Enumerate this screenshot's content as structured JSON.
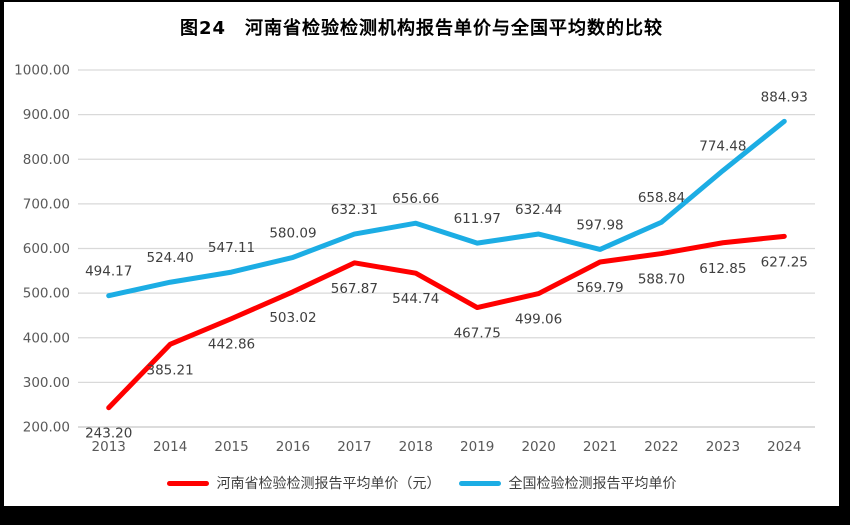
{
  "title": "图24　河南省检验检测机构报告单价与全国平均数的比较",
  "chart_data": {
    "type": "line",
    "categories": [
      "2013",
      "2014",
      "2015",
      "2016",
      "2017",
      "2018",
      "2019",
      "2020",
      "2021",
      "2022",
      "2023",
      "2024"
    ],
    "series": [
      {
        "name": "河南省检验检测报告平均单价（元）",
        "color": "#FF0000",
        "label_position": "below",
        "values": [
          243.2,
          385.21,
          442.86,
          503.02,
          567.87,
          544.74,
          467.75,
          499.06,
          569.79,
          588.7,
          612.85,
          627.25
        ]
      },
      {
        "name": "全国检验检测报告平均单价",
        "color": "#1CADE4",
        "label_position": "above",
        "values": [
          494.17,
          524.4,
          547.11,
          580.09,
          632.31,
          656.66,
          611.97,
          632.44,
          597.98,
          658.84,
          774.48,
          884.93
        ]
      }
    ],
    "ylim": [
      200,
      1000
    ],
    "ytick_step": 100,
    "ytick_labels": [
      "1000.00",
      "900.00",
      "800.00",
      "700.00",
      "600.00",
      "500.00",
      "400.00",
      "300.00",
      "200.00"
    ],
    "grid": true,
    "legend_position": "bottom",
    "colors": {
      "gridline": "#D9D9D9",
      "bottom_axis": "#C6C6C6",
      "axis_tick_text": "#595959",
      "data_label_text": "#3F3F3F",
      "title_text": "#000000",
      "frame": "#000000"
    }
  }
}
